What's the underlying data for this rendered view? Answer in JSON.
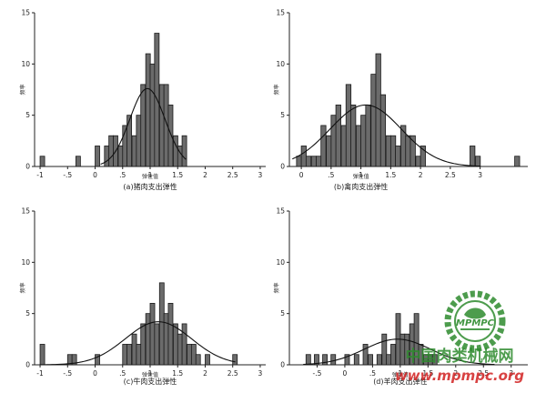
{
  "chart_data": [
    {
      "type": "bar",
      "caption": "(a)猪肉支出弹性",
      "xlabel": "弹性值",
      "ylabel": "频率",
      "xlim": [
        -1.1,
        3.1
      ],
      "ylim": [
        0,
        15
      ],
      "xticks": [
        -1,
        -0.5,
        0,
        0.5,
        1,
        1.5,
        2,
        2.5,
        3
      ],
      "xtick_labels": [
        "-1",
        "-.5",
        "0",
        ".5",
        "1",
        "1.5",
        "2",
        "2.5",
        "3"
      ],
      "yticks": [
        0,
        5,
        10,
        15
      ],
      "bin_width": 0.083,
      "bins": [
        {
          "x": -1.0,
          "y": 1
        },
        {
          "x": -0.35,
          "y": 1
        },
        {
          "x": 0.0,
          "y": 2
        },
        {
          "x": 0.17,
          "y": 2
        },
        {
          "x": 0.25,
          "y": 3
        },
        {
          "x": 0.33,
          "y": 3
        },
        {
          "x": 0.42,
          "y": 2
        },
        {
          "x": 0.5,
          "y": 4
        },
        {
          "x": 0.58,
          "y": 5
        },
        {
          "x": 0.67,
          "y": 3
        },
        {
          "x": 0.75,
          "y": 5
        },
        {
          "x": 0.83,
          "y": 8
        },
        {
          "x": 0.92,
          "y": 11
        },
        {
          "x": 1.0,
          "y": 10
        },
        {
          "x": 1.08,
          "y": 13
        },
        {
          "x": 1.17,
          "y": 8
        },
        {
          "x": 1.25,
          "y": 8
        },
        {
          "x": 1.33,
          "y": 6
        },
        {
          "x": 1.42,
          "y": 3
        },
        {
          "x": 1.5,
          "y": 2
        },
        {
          "x": 1.58,
          "y": 3
        }
      ],
      "curve": {
        "mean": 0.95,
        "sd": 0.32,
        "peak": 7.6,
        "range": [
          0.1,
          1.65
        ]
      }
    },
    {
      "type": "bar",
      "caption": "(b)禽肉支出弹性",
      "xlabel": "弹性值",
      "ylabel": "频率",
      "xlim": [
        -0.2,
        3.8
      ],
      "ylim": [
        0,
        15
      ],
      "xticks": [
        0,
        0.5,
        1,
        1.5,
        2,
        2.5,
        3
      ],
      "xtick_labels": [
        "0",
        ".5",
        "1",
        "1.5",
        "2",
        "2.5",
        "3"
      ],
      "yticks": [
        0,
        5,
        10,
        15
      ],
      "bin_width": 0.083,
      "bins": [
        {
          "x": -0.08,
          "y": 1
        },
        {
          "x": 0.0,
          "y": 2
        },
        {
          "x": 0.08,
          "y": 1
        },
        {
          "x": 0.17,
          "y": 1
        },
        {
          "x": 0.25,
          "y": 1
        },
        {
          "x": 0.33,
          "y": 4
        },
        {
          "x": 0.42,
          "y": 3
        },
        {
          "x": 0.5,
          "y": 5
        },
        {
          "x": 0.58,
          "y": 6
        },
        {
          "x": 0.67,
          "y": 4
        },
        {
          "x": 0.75,
          "y": 8
        },
        {
          "x": 0.83,
          "y": 6
        },
        {
          "x": 0.92,
          "y": 4
        },
        {
          "x": 1.0,
          "y": 5
        },
        {
          "x": 1.08,
          "y": 6
        },
        {
          "x": 1.17,
          "y": 9
        },
        {
          "x": 1.25,
          "y": 11
        },
        {
          "x": 1.33,
          "y": 7
        },
        {
          "x": 1.42,
          "y": 3
        },
        {
          "x": 1.5,
          "y": 3
        },
        {
          "x": 1.58,
          "y": 2
        },
        {
          "x": 1.67,
          "y": 4
        },
        {
          "x": 1.75,
          "y": 3
        },
        {
          "x": 1.83,
          "y": 3
        },
        {
          "x": 1.92,
          "y": 1
        },
        {
          "x": 2.0,
          "y": 2
        },
        {
          "x": 2.83,
          "y": 2
        },
        {
          "x": 2.92,
          "y": 1
        },
        {
          "x": 3.58,
          "y": 1
        }
      ],
      "curve": {
        "mean": 1.08,
        "sd": 0.6,
        "peak": 6.0,
        "range": [
          -0.15,
          3.0
        ]
      }
    },
    {
      "type": "bar",
      "caption": "(c)牛肉支出弹性",
      "xlabel": "弹性值",
      "ylabel": "频率",
      "xlim": [
        -1.1,
        3.1
      ],
      "ylim": [
        0,
        15
      ],
      "xticks": [
        -1,
        -0.5,
        0,
        0.5,
        1,
        1.5,
        2,
        2.5,
        3
      ],
      "xtick_labels": [
        "-1",
        "-.5",
        "0",
        ".5",
        "1",
        "1.5",
        "2",
        "2.5",
        "3"
      ],
      "yticks": [
        0,
        5,
        10,
        15
      ],
      "bin_width": 0.083,
      "bins": [
        {
          "x": -1.0,
          "y": 2
        },
        {
          "x": -0.5,
          "y": 1
        },
        {
          "x": -0.42,
          "y": 1
        },
        {
          "x": 0.0,
          "y": 1
        },
        {
          "x": 0.5,
          "y": 2
        },
        {
          "x": 0.58,
          "y": 2
        },
        {
          "x": 0.67,
          "y": 3
        },
        {
          "x": 0.75,
          "y": 2
        },
        {
          "x": 0.83,
          "y": 4
        },
        {
          "x": 0.92,
          "y": 5
        },
        {
          "x": 1.0,
          "y": 6
        },
        {
          "x": 1.08,
          "y": 4
        },
        {
          "x": 1.17,
          "y": 8
        },
        {
          "x": 1.25,
          "y": 5
        },
        {
          "x": 1.33,
          "y": 6
        },
        {
          "x": 1.42,
          "y": 4
        },
        {
          "x": 1.5,
          "y": 3
        },
        {
          "x": 1.58,
          "y": 4
        },
        {
          "x": 1.67,
          "y": 2
        },
        {
          "x": 1.75,
          "y": 2
        },
        {
          "x": 1.83,
          "y": 1
        },
        {
          "x": 2.0,
          "y": 1
        },
        {
          "x": 2.5,
          "y": 1
        }
      ],
      "curve": {
        "mean": 1.15,
        "sd": 0.6,
        "peak": 4.2,
        "range": [
          -1.0,
          2.55
        ]
      }
    },
    {
      "type": "bar",
      "caption": "(d)羊肉支出弹性",
      "xlabel": "弹性值",
      "ylabel": "频率",
      "xlim": [
        -1.0,
        3.3
      ],
      "ylim": [
        0,
        15
      ],
      "xticks": [
        -0.5,
        0,
        0.5,
        1,
        1.5,
        2,
        2.5,
        3
      ],
      "xtick_labels": [
        "-.5",
        "0",
        ".5",
        "1",
        "1.5",
        "2",
        "2.5",
        "3"
      ],
      "yticks": [
        0,
        5,
        10,
        15
      ],
      "bin_width": 0.083,
      "bins": [
        {
          "x": -0.7,
          "y": 1
        },
        {
          "x": -0.55,
          "y": 1
        },
        {
          "x": -0.4,
          "y": 1
        },
        {
          "x": -0.25,
          "y": 1
        },
        {
          "x": 0.0,
          "y": 1
        },
        {
          "x": 0.17,
          "y": 1
        },
        {
          "x": 0.33,
          "y": 2
        },
        {
          "x": 0.42,
          "y": 1
        },
        {
          "x": 0.58,
          "y": 1
        },
        {
          "x": 0.67,
          "y": 3
        },
        {
          "x": 0.75,
          "y": 1
        },
        {
          "x": 0.83,
          "y": 2
        },
        {
          "x": 0.92,
          "y": 5
        },
        {
          "x": 1.0,
          "y": 3
        },
        {
          "x": 1.08,
          "y": 3
        },
        {
          "x": 1.17,
          "y": 4
        },
        {
          "x": 1.25,
          "y": 5
        },
        {
          "x": 1.33,
          "y": 2
        },
        {
          "x": 1.42,
          "y": 1
        },
        {
          "x": 1.5,
          "y": 1
        },
        {
          "x": 1.58,
          "y": 1
        }
      ],
      "curve": {
        "mean": 0.95,
        "sd": 0.6,
        "peak": 2.5,
        "range": [
          -0.75,
          2.7
        ]
      }
    }
  ],
  "style": {
    "bar_fill": "#6b6b6b",
    "bar_stroke": "#1a1a1a",
    "curve_color": "#111111",
    "axis_color": "#222222",
    "watermark_green": "#2e8b2e",
    "watermark_red": "#d22222"
  },
  "watermark": {
    "logo_text": "MPMPC",
    "cn_text": "中国肉类机械网",
    "url_text": "www.mpmpc.org"
  }
}
